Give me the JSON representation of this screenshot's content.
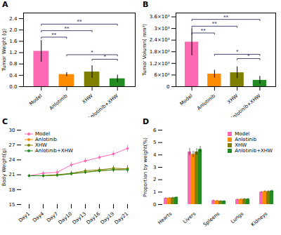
{
  "chart_data": [
    {
      "type": "bar",
      "title": "A",
      "categories": [
        "Model",
        "Anlotinib",
        "XHW",
        "Anlotinib+XHW"
      ],
      "values": [
        1.25,
        0.43,
        0.52,
        0.28
      ],
      "errors": [
        0.38,
        0.07,
        0.22,
        0.13
      ],
      "colors": [
        "#FF69B4",
        "#FF8C00",
        "#808000",
        "#228B22"
      ],
      "ylabel": "Tumor Weight (g)",
      "ylim": [
        0,
        2.6
      ],
      "yticks": [
        {
          "value": 0,
          "label": "0.0"
        },
        0.4,
        0.8,
        1.2,
        1.6,
        {
          "value": 2,
          "label": "2.0"
        },
        2.4
      ],
      "annotations": [
        {
          "text": "**",
          "x": [
            "Model",
            "Anlotinib"
          ],
          "y": 1.7,
          "color": "#1a1a4e"
        },
        {
          "text": "**",
          "x": [
            "Model",
            "XHW"
          ],
          "y": 1.93,
          "color": "#1a1a4e"
        },
        {
          "text": "**",
          "x": [
            "Model",
            "Anlotinib+XHW"
          ],
          "y": 2.16,
          "color": "#1a1a4e"
        },
        {
          "text": "*",
          "x": [
            "XHW",
            "Anlotinib+XHW"
          ],
          "y": 0.92,
          "color": "#1a1a4e"
        },
        {
          "text": "*",
          "x": [
            "Anlotinib",
            "Anlotinib+XHW"
          ],
          "y": 1.08,
          "color": "#1a1a4e"
        }
      ]
    },
    {
      "type": "bar",
      "title": "B",
      "categories": [
        "Model",
        "Anlotinib",
        "XHW",
        "Anlotinib+XHW"
      ],
      "values": [
        2300,
        650,
        720,
        330
      ],
      "errors": [
        700,
        200,
        300,
        200
      ],
      "colors": [
        "#FF69B4",
        "#FF8C00",
        "#808000",
        "#228B22"
      ],
      "ylabel": "Tumor Volumn( mm³)",
      "ylim": [
        0,
        3800
      ],
      "yticks": [
        0,
        {
          "value": 600,
          "label": "6×10²"
        },
        {
          "value": 1200,
          "label": "1.2×10³"
        },
        {
          "value": 1800,
          "label": "1.8×10³"
        },
        {
          "value": 2400,
          "label": "2.4×10³"
        },
        {
          "value": 3000,
          "label": "3×10³"
        },
        {
          "value": 3600,
          "label": "3.6×10³"
        }
      ],
      "annotations": [
        {
          "text": "**",
          "x": [
            "Model",
            "Anlotinib"
          ],
          "y": 2700,
          "color": "#1a1a4e"
        },
        {
          "text": "**",
          "x": [
            "Model",
            "XHW"
          ],
          "y": 3050,
          "color": "#1a1a4e"
        },
        {
          "text": "**",
          "x": [
            "Model",
            "Anlotinib+XHW"
          ],
          "y": 3400,
          "color": "#1a1a4e"
        },
        {
          "text": "*",
          "x": [
            "XHW",
            "Anlotinib+XHW"
          ],
          "y": 1380,
          "color": "#1a1a4e"
        },
        {
          "text": "*",
          "x": [
            "Anlotinib",
            "Anlotinib+XHW"
          ],
          "y": 1600,
          "color": "#1a1a4e"
        }
      ]
    },
    {
      "type": "line",
      "title": "C",
      "categories": [
        "Day1",
        "Day4",
        "Day7",
        "Day10",
        "Day13",
        "Day16",
        "Day19",
        "Day21"
      ],
      "series": [
        {
          "name": "Model",
          "color": "#FF69B4",
          "values": [
            20.8,
            21.3,
            21.5,
            23.0,
            23.8,
            24.5,
            25.2,
            26.3
          ],
          "errors": [
            0.3,
            0.4,
            0.5,
            0.5,
            0.5,
            0.5,
            0.6,
            0.7
          ]
        },
        {
          "name": "Anlotinib",
          "color": "#FF8C00",
          "values": [
            20.8,
            20.8,
            20.9,
            21.2,
            21.5,
            21.8,
            22.0,
            22.2
          ],
          "errors": [
            0.3,
            0.5,
            0.4,
            0.4,
            0.4,
            0.5,
            0.6,
            0.7
          ]
        },
        {
          "name": "XHW",
          "color": "#808000",
          "values": [
            20.8,
            20.8,
            21.0,
            21.3,
            21.8,
            22.0,
            22.3,
            22.2
          ],
          "errors": [
            0.3,
            0.4,
            0.4,
            0.4,
            0.4,
            0.5,
            0.5,
            0.7
          ]
        },
        {
          "name": "Anlotinib+XHW",
          "color": "#228B22",
          "values": [
            20.8,
            20.8,
            20.9,
            21.2,
            21.5,
            21.8,
            22.0,
            22.0
          ],
          "errors": [
            0.3,
            0.4,
            0.4,
            0.4,
            0.4,
            0.5,
            0.5,
            0.6
          ]
        }
      ],
      "marker": "o",
      "ylabel": "Body Weight(g)",
      "ylim": [
        15,
        30
      ],
      "yticks": [
        15,
        18,
        21,
        24,
        27,
        30
      ],
      "legend": "upper left"
    },
    {
      "type": "bar",
      "title": "D",
      "categories": [
        "Hearts",
        "Livers",
        "Spleens",
        "Lungs",
        "Kidneys"
      ],
      "series": [
        {
          "name": "Model",
          "color": "#FF69B4",
          "values": [
            0.5,
            4.25,
            0.32,
            0.4,
            1.0
          ],
          "errors": [
            0.05,
            0.28,
            0.04,
            0.05,
            0.07
          ]
        },
        {
          "name": "Anlotinib",
          "color": "#FF8C00",
          "values": [
            0.52,
            4.05,
            0.3,
            0.42,
            1.05
          ],
          "errors": [
            0.05,
            0.25,
            0.04,
            0.05,
            0.07
          ]
        },
        {
          "name": "XHW",
          "color": "#808000",
          "values": [
            0.54,
            4.25,
            0.28,
            0.44,
            1.05
          ],
          "errors": [
            0.05,
            0.27,
            0.04,
            0.05,
            0.07
          ]
        },
        {
          "name": "Anlotinib+XHW",
          "color": "#228B22",
          "values": [
            0.58,
            4.45,
            0.28,
            0.44,
            1.1
          ],
          "errors": [
            0.05,
            0.25,
            0.03,
            0.05,
            0.07
          ]
        }
      ],
      "ylabel": "Proportiоn by weight(%)",
      "ylim": [
        0,
        6.0
      ],
      "yticks": [
        0,
        1,
        2,
        3,
        4,
        5,
        6
      ],
      "legend": "upper right"
    }
  ]
}
